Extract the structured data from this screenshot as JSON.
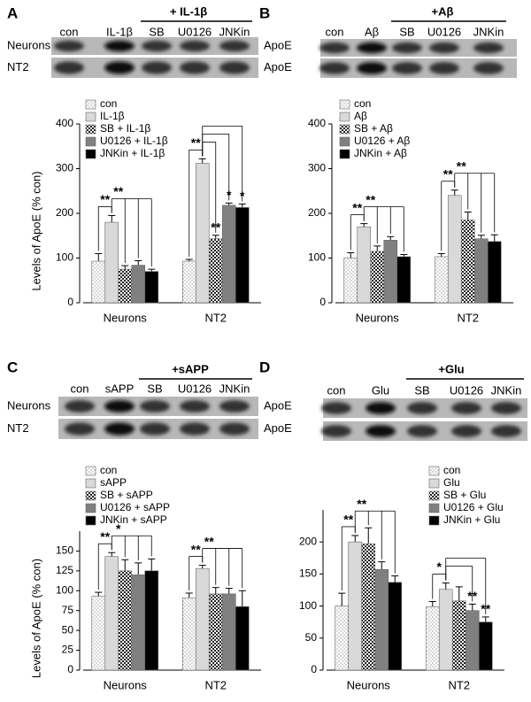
{
  "chart_data": [
    {
      "type": "bar",
      "panel": "A",
      "blot": {
        "treatment": "+ IL-1β",
        "lanes": [
          "con",
          "IL-1β",
          "SB",
          "U0126",
          "JNKin"
        ],
        "row_labels": [
          "Neurons",
          "NT2"
        ],
        "protein_labels": [
          "ApoE",
          "ApoE"
        ]
      },
      "ylabel": "Levels of ApoE (% con)",
      "categories": [
        "Neurons",
        "NT2"
      ],
      "series": [
        {
          "name": "con",
          "color": "#ffffff",
          "pattern": "dots",
          "values": [
            93,
            93
          ],
          "errors": [
            17,
            4
          ]
        },
        {
          "name": "IL-1β",
          "color": "#d9d9d9",
          "values": [
            180,
            312
          ],
          "errors": [
            15,
            10
          ]
        },
        {
          "name": "SB + IL-1β",
          "color": "#ffffff",
          "pattern": "checker",
          "values": [
            75,
            143
          ],
          "errors": [
            8,
            8
          ]
        },
        {
          "name": "U0126 + IL-1β",
          "color": "#808080",
          "values": [
            84,
            218
          ],
          "errors": [
            10,
            5
          ]
        },
        {
          "name": "JNKin + IL-1β",
          "color": "#000000",
          "values": [
            70,
            213
          ],
          "errors": [
            5,
            8
          ]
        }
      ],
      "ylim": [
        0,
        400
      ],
      "yticks": [
        0,
        100,
        200,
        300,
        400
      ],
      "annotations": [
        {
          "label": "**",
          "category": 0,
          "from": 0,
          "to": [
            1
          ]
        },
        {
          "label": "**",
          "category": 0,
          "from": 1,
          "to": [
            2,
            3,
            4
          ]
        },
        {
          "label": "**",
          "category": 1,
          "from": 0,
          "to": [
            1
          ]
        },
        {
          "label": "**",
          "category": 1,
          "from": 1,
          "to": [
            2
          ],
          "place": "bar"
        },
        {
          "label": "*",
          "category": 1,
          "from": 1,
          "to": [
            3
          ],
          "place": "bar"
        },
        {
          "label": "*",
          "category": 1,
          "from": 1,
          "to": [
            4
          ],
          "place": "bar"
        }
      ]
    },
    {
      "type": "bar",
      "panel": "B",
      "blot": {
        "treatment": "+Aβ",
        "lanes": [
          "con",
          "Aβ",
          "SB",
          "U0126",
          "JNKin"
        ]
      },
      "categories": [
        "Neurons",
        "NT2"
      ],
      "series": [
        {
          "name": "con",
          "color": "#ffffff",
          "pattern": "dots",
          "values": [
            100,
            103
          ],
          "errors": [
            12,
            7
          ]
        },
        {
          "name": "Aβ",
          "color": "#d9d9d9",
          "values": [
            170,
            240
          ],
          "errors": [
            7,
            12
          ]
        },
        {
          "name": "SB + Aβ",
          "color": "#ffffff",
          "pattern": "checker",
          "values": [
            115,
            185
          ],
          "errors": [
            12,
            18
          ]
        },
        {
          "name": "U0126 + Aβ",
          "color": "#808080",
          "values": [
            140,
            143
          ],
          "errors": [
            8,
            8
          ]
        },
        {
          "name": "JNKin + Aβ",
          "color": "#000000",
          "values": [
            103,
            137
          ],
          "errors": [
            5,
            15
          ]
        }
      ],
      "ylim": [
        0,
        400
      ],
      "yticks": [
        0,
        100,
        200,
        300,
        400
      ],
      "annotations": [
        {
          "label": "**",
          "category": 0,
          "from": 0,
          "to": [
            1
          ]
        },
        {
          "label": "**",
          "category": 0,
          "from": 1,
          "to": [
            2,
            3,
            4
          ]
        },
        {
          "label": "**",
          "category": 1,
          "from": 0,
          "to": [
            1
          ]
        },
        {
          "label": "**",
          "category": 1,
          "from": 1,
          "to": [
            2,
            3,
            4
          ]
        }
      ]
    },
    {
      "type": "bar",
      "panel": "C",
      "blot": {
        "treatment": "+sAPP",
        "lanes": [
          "con",
          "sAPP",
          "SB",
          "U0126",
          "JNKin"
        ],
        "row_labels": [
          "Neurons",
          "NT2"
        ],
        "protein_labels": [
          "ApoE",
          "ApoE"
        ]
      },
      "ylabel": "Levels of ApoE (% con)",
      "categories": [
        "Neurons",
        "NT2"
      ],
      "series": [
        {
          "name": "con",
          "color": "#ffffff",
          "pattern": "dots",
          "values": [
            93,
            91
          ],
          "errors": [
            5,
            6
          ]
        },
        {
          "name": "sAPP",
          "color": "#d9d9d9",
          "values": [
            143,
            128
          ],
          "errors": [
            5,
            4
          ]
        },
        {
          "name": "SB + sAPP",
          "color": "#ffffff",
          "pattern": "checker",
          "values": [
            125,
            96
          ],
          "errors": [
            14,
            8
          ]
        },
        {
          "name": "U0126 + sAPP",
          "color": "#808080",
          "values": [
            120,
            96
          ],
          "errors": [
            15,
            7
          ]
        },
        {
          "name": "JNKin + sAPP",
          "color": "#000000",
          "values": [
            125,
            80
          ],
          "errors": [
            15,
            20
          ]
        }
      ],
      "ylim": [
        0,
        175
      ],
      "yticks": [
        0,
        25,
        50,
        75,
        100,
        125,
        150
      ],
      "annotations": [
        {
          "label": "**",
          "category": 0,
          "from": 0,
          "to": [
            1
          ]
        },
        {
          "label": "*",
          "category": 0,
          "from": 1,
          "to": [
            2,
            3,
            4
          ]
        },
        {
          "label": "**",
          "category": 1,
          "from": 0,
          "to": [
            1
          ]
        },
        {
          "label": "**",
          "category": 1,
          "from": 1,
          "to": [
            2,
            3,
            4
          ]
        }
      ]
    },
    {
      "type": "bar",
      "panel": "D",
      "blot": {
        "treatment": "+Glu",
        "lanes": [
          "con",
          "Glu",
          "SB",
          "U0126",
          "JNKin"
        ]
      },
      "categories": [
        "Neurons",
        "NT2"
      ],
      "series": [
        {
          "name": "con",
          "color": "#ffffff",
          "pattern": "dots",
          "values": [
            100,
            99
          ],
          "errors": [
            20,
            8
          ]
        },
        {
          "name": "Glu",
          "color": "#d9d9d9",
          "values": [
            200,
            126
          ],
          "errors": [
            10,
            10
          ]
        },
        {
          "name": "SB + Glu",
          "color": "#ffffff",
          "pattern": "checker",
          "values": [
            197,
            108
          ],
          "errors": [
            25,
            22
          ]
        },
        {
          "name": "U0126 + Glu",
          "color": "#808080",
          "values": [
            157,
            93
          ],
          "errors": [
            12,
            10
          ]
        },
        {
          "name": "JNKin + Glu",
          "color": "#000000",
          "values": [
            137,
            75
          ],
          "errors": [
            10,
            8
          ]
        }
      ],
      "ylim": [
        0,
        250
      ],
      "yticks": [
        0,
        50,
        100,
        150,
        200
      ],
      "annotations": [
        {
          "label": "**",
          "category": 0,
          "from": 0,
          "to": [
            1
          ]
        },
        {
          "label": "**",
          "category": 0,
          "from": 1,
          "to": [
            2,
            3,
            4
          ]
        },
        {
          "label": "*",
          "category": 1,
          "from": 0,
          "to": [
            1
          ]
        },
        {
          "label": "**",
          "category": 1,
          "from": 1,
          "to": [
            3
          ],
          "place": "bar"
        },
        {
          "label": "**",
          "category": 1,
          "from": 1,
          "to": [
            4
          ],
          "place": "bar"
        }
      ]
    }
  ]
}
